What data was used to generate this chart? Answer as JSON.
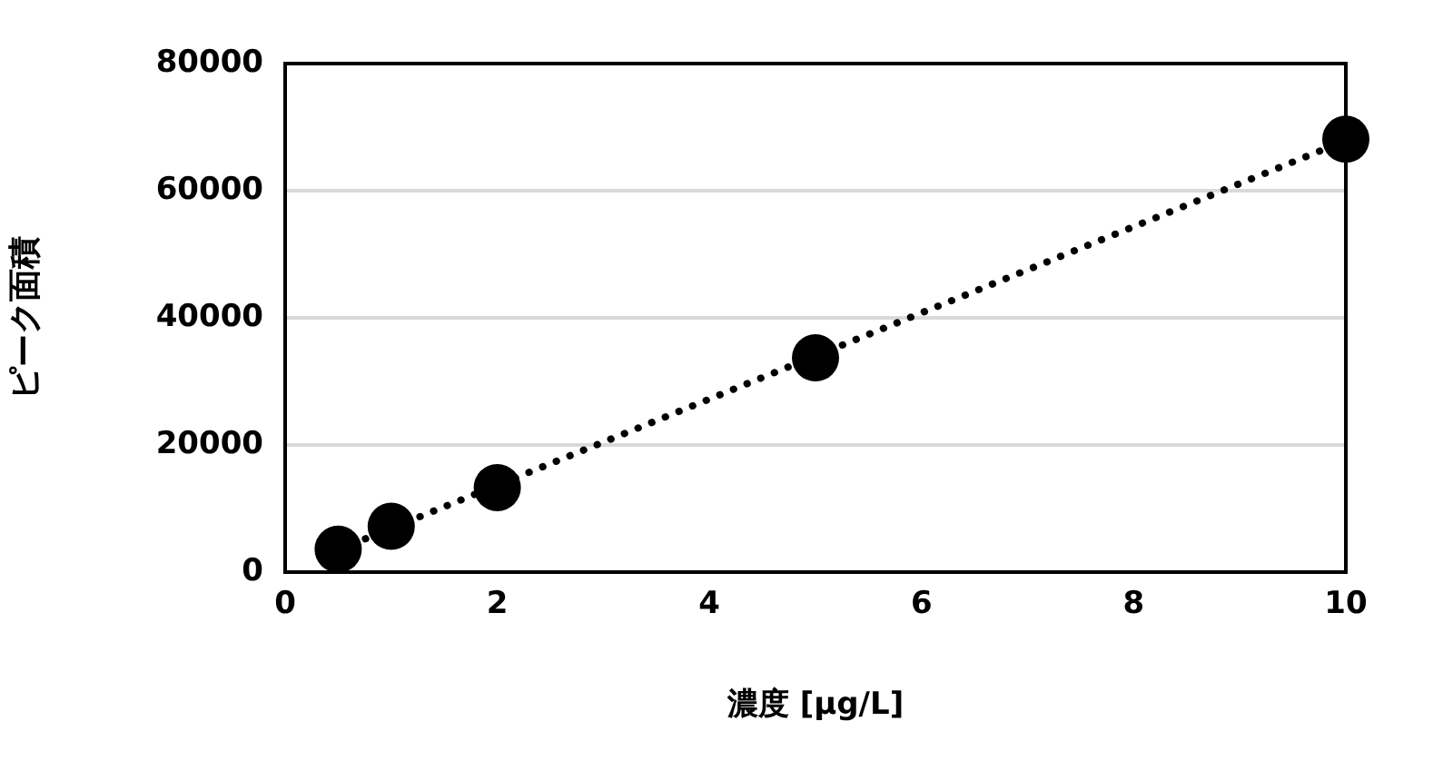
{
  "chart_data": {
    "type": "scatter",
    "xlabel": "濃度 [μg/L]",
    "ylabel": "ピーク面積",
    "xlim": [
      0,
      10
    ],
    "xticks": [
      0,
      2,
      4,
      6,
      8,
      10
    ],
    "ylim": [
      0,
      80000
    ],
    "yticks": [
      0,
      20000,
      40000,
      60000,
      80000
    ],
    "grid": "y",
    "series": [
      {
        "color": "#000000",
        "marker": "circle",
        "x": [
          0.5,
          1,
          2,
          5,
          10
        ],
        "values": [
          3600,
          7200,
          13300,
          33700,
          68100
        ]
      },
      {
        "type": "line",
        "color": "#000000",
        "marker": "none",
        "line_style": "dotted",
        "x": [
          0.5,
          10
        ],
        "values": [
          3500,
          67900
        ]
      }
    ]
  }
}
